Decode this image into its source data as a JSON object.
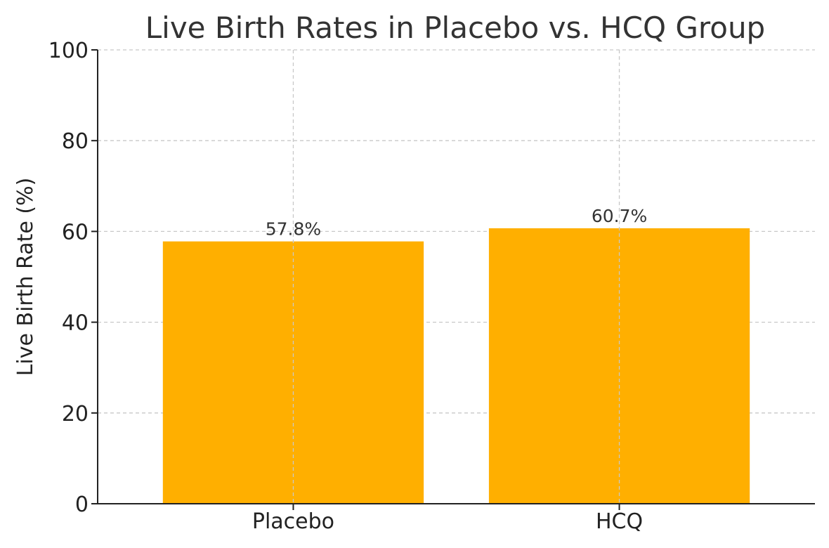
{
  "chart_data": {
    "type": "bar",
    "title": "Live Birth Rates in Placebo vs. HCQ Group",
    "xlabel": "",
    "ylabel": "Live Birth Rate (%)",
    "categories": [
      "Placebo",
      "HCQ"
    ],
    "values": [
      57.8,
      60.7
    ],
    "data_labels": [
      "57.8%",
      "60.7%"
    ],
    "ylim": [
      0,
      100
    ],
    "yticks": [
      0,
      20,
      40,
      60,
      80,
      100
    ],
    "grid": true,
    "bar_color": "#FFAF00"
  }
}
